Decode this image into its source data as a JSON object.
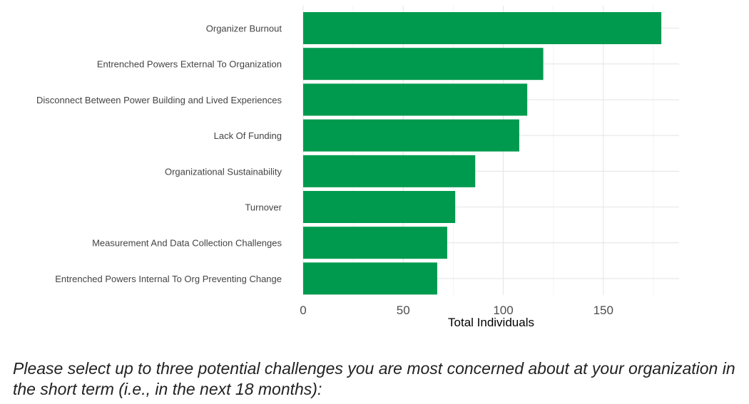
{
  "chart_data": {
    "type": "bar",
    "orientation": "horizontal",
    "categories": [
      "Organizer Burnout",
      "Entrenched Powers External To Organization",
      "Disconnect Between Power Building and Lived Experiences",
      "Lack Of Funding",
      "Organizational Sustainability",
      "Turnover",
      "Measurement And Data Collection Challenges",
      "Entrenched Powers Internal To Org Preventing Change"
    ],
    "values": [
      179,
      120,
      112,
      108,
      86,
      76,
      72,
      67
    ],
    "xlabel": "Total Individuals",
    "ylabel": "",
    "xlim": [
      0,
      188
    ],
    "xticks": [
      0,
      50,
      100,
      150
    ],
    "xtick_labels": [
      "0",
      "50",
      "100",
      "150"
    ],
    "grid": true,
    "legend": "none",
    "bar_color": "#009a4e"
  },
  "caption": "Please select up to three potential challenges you are most concerned about at your organization in the short term (i.e., in the next 18 months):"
}
